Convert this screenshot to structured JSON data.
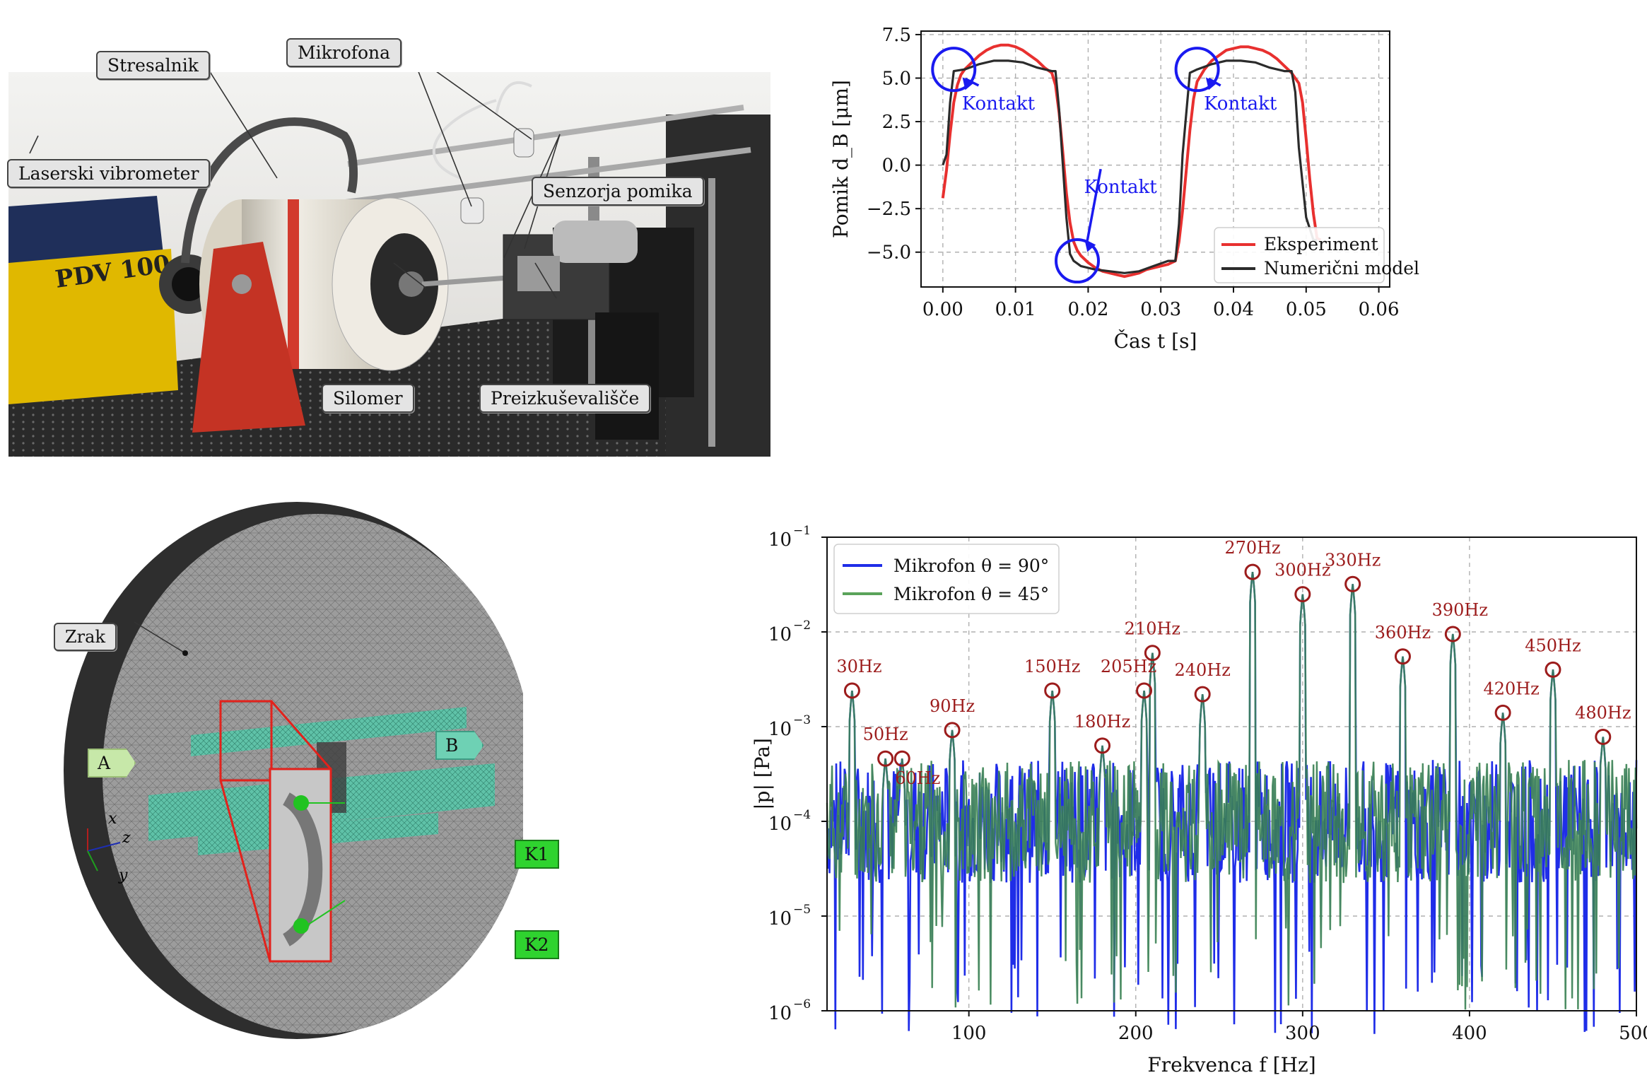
{
  "photo": {
    "labels": {
      "stresalnik": "Stresalnik",
      "mikrofona": "Mikrofona",
      "laser": "Laserski vibrometer",
      "senzorja": "Senzorja pomika",
      "silomer": "Silomer",
      "preizkusevalisce": "Preizkuševališče",
      "pdv": "PDV 100"
    }
  },
  "mesh": {
    "labels": {
      "zrak": "Zrak",
      "a": "A",
      "b": "B",
      "k1": "K1",
      "k2": "K2",
      "axis_x": "x",
      "axis_y": "y",
      "axis_z": "z"
    }
  },
  "chart_data": [
    {
      "type": "line",
      "xlabel": "Čas t [s]",
      "ylabel": "Pomik d_B [μm]",
      "xlim": [
        -0.003,
        0.0615
      ],
      "ylim": [
        -7.0,
        7.7
      ],
      "xticks": [
        0.0,
        0.01,
        0.02,
        0.03,
        0.04,
        0.05,
        0.06
      ],
      "xtick_labels": [
        "0.00",
        "0.01",
        "0.02",
        "0.03",
        "0.04",
        "0.05",
        "0.06"
      ],
      "yticks": [
        -5.0,
        -2.5,
        0.0,
        2.5,
        5.0,
        7.5
      ],
      "ytick_labels": [
        "−5.0",
        "−2.5",
        "0.0",
        "2.5",
        "5.0",
        "7.5"
      ],
      "grid": true,
      "legend_position": "bottom-right",
      "series": [
        {
          "name": "Eksperiment",
          "color": "#e8302f",
          "x": [
            0.0,
            0.0005,
            0.001,
            0.0015,
            0.002,
            0.0025,
            0.003,
            0.004,
            0.005,
            0.006,
            0.007,
            0.008,
            0.009,
            0.01,
            0.011,
            0.012,
            0.013,
            0.014,
            0.015,
            0.0155,
            0.016,
            0.0165,
            0.017,
            0.0175,
            0.018,
            0.0185,
            0.019,
            0.02,
            0.021,
            0.022,
            0.023,
            0.024,
            0.025,
            0.026,
            0.027,
            0.028,
            0.029,
            0.03,
            0.031,
            0.032,
            0.0325,
            0.033,
            0.0335,
            0.034,
            0.0345,
            0.035,
            0.036,
            0.037,
            0.038,
            0.039,
            0.04,
            0.041,
            0.042,
            0.043,
            0.044,
            0.045,
            0.046,
            0.047,
            0.048,
            0.049,
            0.0495,
            0.05,
            0.0505,
            0.051,
            0.0515,
            0.052
          ],
          "y": [
            -1.9,
            -0.3,
            1.8,
            3.6,
            4.6,
            5.2,
            5.5,
            5.9,
            6.3,
            6.6,
            6.8,
            6.9,
            6.9,
            6.8,
            6.6,
            6.3,
            6.0,
            5.6,
            5.3,
            4.6,
            3.0,
            0.8,
            -1.6,
            -3.3,
            -4.4,
            -4.9,
            -5.2,
            -5.6,
            -5.9,
            -6.1,
            -6.2,
            -6.3,
            -6.4,
            -6.3,
            -6.2,
            -6.0,
            -5.9,
            -5.8,
            -5.7,
            -5.5,
            -4.4,
            -2.6,
            -0.3,
            2.0,
            3.8,
            4.8,
            5.5,
            6.0,
            6.3,
            6.6,
            6.7,
            6.8,
            6.8,
            6.7,
            6.6,
            6.4,
            6.1,
            5.7,
            5.3,
            4.7,
            3.6,
            1.5,
            -0.8,
            -2.8,
            -4.2,
            -4.3
          ]
        },
        {
          "name": "Numerični model",
          "color": "#2b2b2b",
          "x": [
            0.0,
            0.0005,
            0.001,
            0.0015,
            0.003,
            0.005,
            0.007,
            0.009,
            0.011,
            0.013,
            0.015,
            0.0155,
            0.016,
            0.017,
            0.0175,
            0.018,
            0.019,
            0.021,
            0.023,
            0.025,
            0.027,
            0.029,
            0.031,
            0.032,
            0.0325,
            0.033,
            0.034,
            0.035,
            0.037,
            0.039,
            0.041,
            0.043,
            0.045,
            0.047,
            0.048,
            0.0485,
            0.049,
            0.05,
            0.051,
            0.0515
          ],
          "y": [
            0.0,
            0.6,
            3.6,
            5.4,
            5.5,
            5.8,
            6.0,
            6.0,
            5.9,
            5.6,
            5.4,
            5.4,
            3.2,
            -3.0,
            -5.1,
            -5.5,
            -5.8,
            -6.0,
            -6.1,
            -6.2,
            -6.1,
            -5.8,
            -5.5,
            -5.5,
            -3.4,
            0.6,
            5.3,
            5.5,
            5.8,
            6.0,
            6.0,
            5.9,
            5.6,
            5.4,
            5.4,
            4.2,
            1.0,
            -3.0,
            -4.3,
            -4.3
          ]
        }
      ],
      "annotations": [
        {
          "text": "Kontakt",
          "x": 0.0015,
          "y": 5.5
        },
        {
          "text": "Kontakt",
          "x": 0.0185,
          "y": -5.5
        },
        {
          "text": "Kontakt",
          "x": 0.035,
          "y": 5.5
        }
      ],
      "annotation_color": "#1a1af0"
    },
    {
      "type": "line",
      "xlabel": "Frekvenca f [Hz]",
      "ylabel": "|p| [Pa]",
      "xlim": [
        0,
        500
      ],
      "ylim": [
        1e-06,
        0.1
      ],
      "yscale": "log",
      "xticks": [
        100,
        200,
        300,
        400,
        500
      ],
      "xtick_labels": [
        "100",
        "200",
        "300",
        "400",
        "500"
      ],
      "yticks": [
        1e-06,
        1e-05,
        0.0001,
        0.001,
        0.01,
        0.1
      ],
      "ytick_labels": [
        "10",
        "10",
        "10",
        "10",
        "10",
        "10"
      ],
      "ytick_exponents": [
        "−6",
        "−5",
        "−4",
        "−3",
        "−2",
        "−1"
      ],
      "grid": true,
      "legend_position": "top-left",
      "series": [
        {
          "name": "Mikrofon θ = 90°",
          "color": "#1f2de8"
        },
        {
          "name": "Mikrofon θ = 45°",
          "color": "#5aa35a"
        }
      ],
      "peaks": [
        {
          "f": 30,
          "value": 0.0024,
          "label": "30Hz"
        },
        {
          "f": 50,
          "value": 0.00046,
          "label": "50Hz"
        },
        {
          "f": 60,
          "value": 0.00046,
          "label": "60Hz"
        },
        {
          "f": 90,
          "value": 0.00092,
          "label": "90Hz"
        },
        {
          "f": 150,
          "value": 0.0024,
          "label": "150Hz"
        },
        {
          "f": 180,
          "value": 0.00063,
          "label": "180Hz"
        },
        {
          "f": 205,
          "value": 0.0024,
          "label": "205Hz"
        },
        {
          "f": 210,
          "value": 0.006,
          "label": "210Hz"
        },
        {
          "f": 240,
          "value": 0.0022,
          "label": "240Hz"
        },
        {
          "f": 270,
          "value": 0.043,
          "label": "270Hz"
        },
        {
          "f": 300,
          "value": 0.025,
          "label": "300Hz"
        },
        {
          "f": 330,
          "value": 0.032,
          "label": "330Hz"
        },
        {
          "f": 360,
          "value": 0.0055,
          "label": "360Hz"
        },
        {
          "f": 390,
          "value": 0.0095,
          "label": "390Hz"
        },
        {
          "f": 420,
          "value": 0.0014,
          "label": "420Hz"
        },
        {
          "f": 450,
          "value": 0.004,
          "label": "450Hz"
        },
        {
          "f": 480,
          "value": 0.00078,
          "label": "480Hz"
        }
      ],
      "peak_color": "#9c1c1c",
      "noise_floor": 0.0001
    }
  ]
}
